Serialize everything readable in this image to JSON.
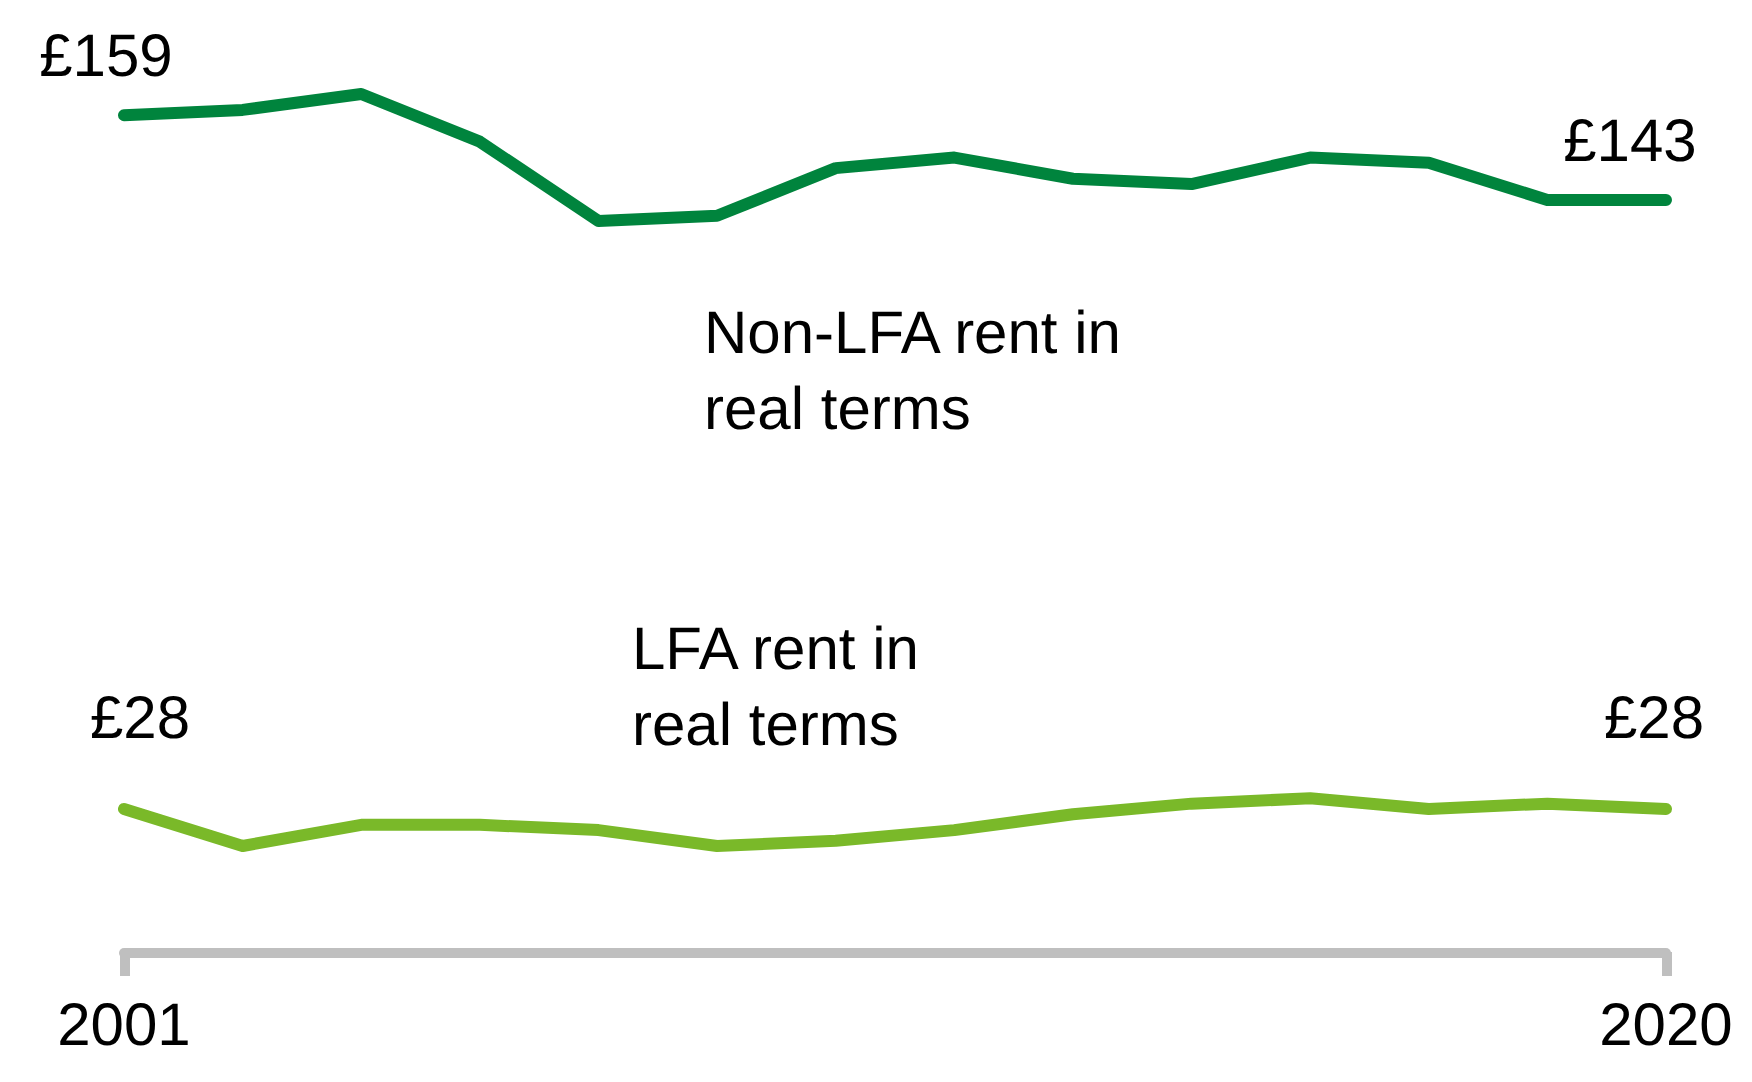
{
  "chart_data": {
    "type": "line",
    "categories": [
      "2001",
      null,
      null,
      null,
      null,
      null,
      null,
      null,
      null,
      null,
      null,
      null,
      null,
      "2020"
    ],
    "series": [
      {
        "name": "Non-LFA rent in real terms",
        "color": "#00843d",
        "values": [
          159,
          160,
          163,
          154,
          139,
          140,
          149,
          151,
          147,
          146,
          151,
          150,
          143,
          143
        ],
        "value_labels": [
          "£159",
          null,
          null,
          null,
          null,
          null,
          null,
          null,
          null,
          null,
          null,
          null,
          null,
          "£143"
        ]
      },
      {
        "name": "LFA rent in real terms",
        "color": "#7ab929",
        "values": [
          28,
          21,
          25,
          25,
          24,
          21,
          22,
          24,
          27,
          29,
          30,
          28,
          29,
          28
        ],
        "value_labels": [
          "£28",
          null,
          null,
          null,
          null,
          null,
          null,
          null,
          null,
          null,
          null,
          null,
          null,
          "£28"
        ]
      }
    ],
    "grid": false,
    "legend": false,
    "marker": "none",
    "line_style": "solid",
    "tick_labels": "x"
  }
}
